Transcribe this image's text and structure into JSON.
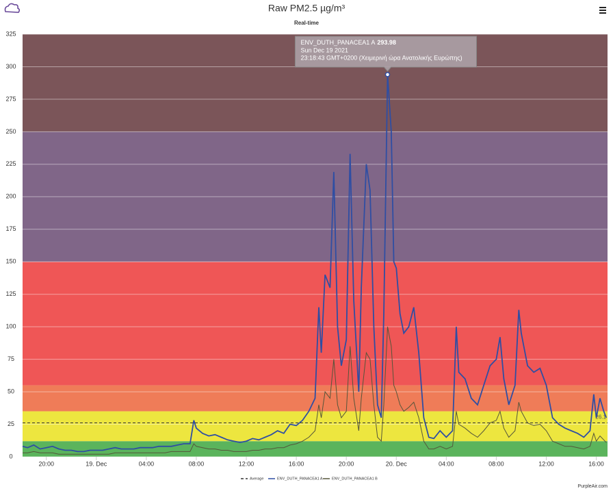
{
  "chart_data": {
    "type": "line",
    "title": "Raw PM2.5 µg/m³",
    "subtitle": "Real-time",
    "credit": "PurpleAir.com",
    "x": [
      18.1,
      18.5,
      19,
      19.5,
      20,
      20.5,
      21,
      21.5,
      22,
      22.5,
      23,
      23.5,
      24,
      24.5,
      25,
      25.5,
      26,
      26.5,
      27,
      27.5,
      28,
      28.5,
      29,
      29.5,
      30,
      30.5,
      31,
      31.5,
      31.8,
      32,
      32.5,
      33,
      33.5,
      34,
      34.5,
      35,
      35.5,
      36,
      36.5,
      37,
      37.5,
      38,
      38.5,
      39,
      39.5,
      40,
      40.5,
      41,
      41.5,
      41.8,
      42,
      42.3,
      42.7,
      43,
      43.3,
      43.6,
      44,
      44.3,
      44.6,
      45,
      45.2,
      45.6,
      45.9,
      46.2,
      46.5,
      46.8,
      47,
      47.3,
      47.6,
      47.8,
      48,
      48.3,
      48.6,
      49,
      49.4,
      49.8,
      50.2,
      50.6,
      51,
      51.5,
      52,
      52.5,
      52.8,
      53,
      53.5,
      54,
      54.5,
      55,
      55.5,
      56,
      56.3,
      56.6,
      57,
      57.5,
      57.8,
      58,
      58.5,
      59,
      59.5,
      60,
      60.5,
      61,
      61.5,
      62,
      62.5,
      63,
      63.5,
      63.8,
      64,
      64.3,
      64.6,
      64.8
    ],
    "series": [
      {
        "name": "ENV_DUTH_PANACEA1 A",
        "color": "#2f4ea3",
        "values": [
          8,
          7,
          9,
          6,
          7,
          8,
          6,
          5,
          5,
          4,
          4,
          5,
          5,
          5,
          6,
          7,
          6,
          6,
          6,
          7,
          7,
          7,
          8,
          8,
          8,
          9,
          10,
          10,
          28,
          22,
          18,
          16,
          17,
          15,
          13,
          12,
          11,
          12,
          14,
          13,
          15,
          17,
          20,
          18,
          25,
          24,
          28,
          35,
          45,
          115,
          80,
          140,
          130,
          219,
          100,
          70,
          90,
          233,
          120,
          50,
          130,
          225,
          205,
          100,
          40,
          30,
          110,
          293.98,
          250,
          150,
          145,
          110,
          95,
          100,
          115,
          80,
          30,
          15,
          14,
          20,
          15,
          20,
          100,
          65,
          60,
          45,
          40,
          55,
          70,
          75,
          92,
          60,
          40,
          55,
          113,
          95,
          70,
          65,
          68,
          55,
          30,
          25,
          22,
          20,
          18,
          15,
          20,
          48,
          30,
          45,
          35,
          30
        ]
      },
      {
        "name": "ENV_DUTH_PANACEA1 B",
        "color": "#55553a",
        "values": [
          3,
          3,
          4,
          3,
          3,
          3,
          2,
          2,
          2,
          2,
          2,
          2,
          2,
          2,
          2,
          3,
          3,
          3,
          3,
          3,
          3,
          3,
          3,
          3,
          4,
          4,
          4,
          4,
          10,
          8,
          7,
          6,
          6,
          5,
          5,
          4,
          4,
          4,
          5,
          5,
          6,
          6,
          7,
          7,
          9,
          10,
          12,
          15,
          20,
          40,
          30,
          50,
          45,
          75,
          40,
          30,
          35,
          85,
          45,
          20,
          45,
          80,
          75,
          40,
          15,
          12,
          40,
          100,
          85,
          55,
          50,
          40,
          35,
          38,
          42,
          30,
          12,
          6,
          6,
          8,
          6,
          8,
          35,
          25,
          22,
          18,
          15,
          20,
          26,
          28,
          35,
          22,
          15,
          20,
          42,
          35,
          26,
          24,
          25,
          20,
          12,
          10,
          8,
          8,
          7,
          6,
          8,
          18,
          12,
          16,
          13,
          11
        ]
      }
    ],
    "average": {
      "name": "Average",
      "value": 26.1,
      "color": "#333333"
    },
    "bands": [
      {
        "from": 0,
        "to": 12,
        "color": "#5bb45c"
      },
      {
        "from": 12,
        "to": 35,
        "color": "#ede63f"
      },
      {
        "from": 35,
        "to": 55,
        "color": "#ef7c58"
      },
      {
        "from": 55,
        "to": 150,
        "color": "#ef5656"
      },
      {
        "from": 150,
        "to": 250,
        "color": "#806688"
      },
      {
        "from": 250,
        "to": 325,
        "color": "#7b5559"
      }
    ],
    "xlim": [
      18.1,
      64.9
    ],
    "xticks": [
      {
        "value": 20,
        "label": "20:00"
      },
      {
        "value": 24,
        "label": "19. Dec"
      },
      {
        "value": 28,
        "label": "04:00"
      },
      {
        "value": 32,
        "label": "08:00"
      },
      {
        "value": 36,
        "label": "12:00"
      },
      {
        "value": 40,
        "label": "16:00"
      },
      {
        "value": 44,
        "label": "20:00"
      },
      {
        "value": 48,
        "label": "20. Dec"
      },
      {
        "value": 52,
        "label": "04:00"
      },
      {
        "value": 56,
        "label": "08:00"
      },
      {
        "value": 60,
        "label": "12:00"
      },
      {
        "value": 64,
        "label": "16:00"
      }
    ],
    "ylim": [
      0,
      325
    ],
    "yticks": [
      0,
      25,
      50,
      75,
      100,
      125,
      150,
      175,
      200,
      225,
      250,
      275,
      300,
      325
    ],
    "grid": true,
    "tooltip": {
      "date": "Sun Dec 19 2021",
      "time": "23:18:43 GMT+0200 (Χειμερινή ώρα Ανατολικής Ευρώπης)",
      "series": 0,
      "index": 67
    }
  }
}
